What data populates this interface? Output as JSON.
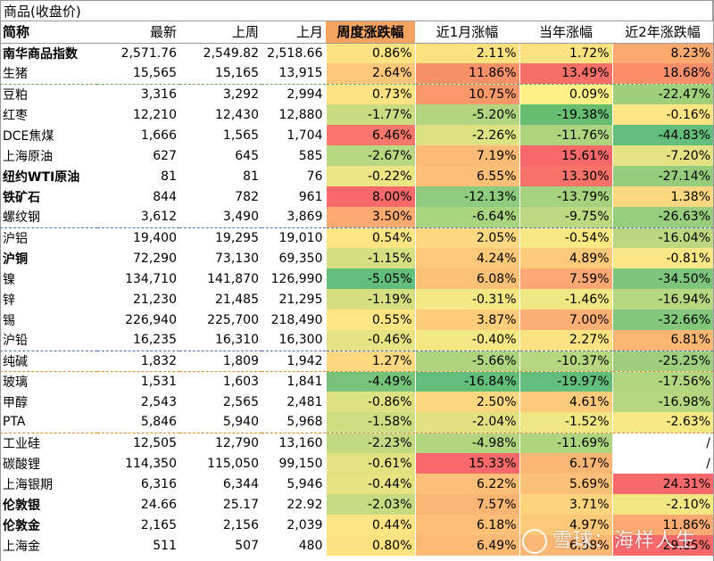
{
  "title": "商品(收盘价)",
  "headers": [
    "简称",
    "最新",
    "上周",
    "上月",
    "周度涨跌幅",
    "近1月涨幅",
    "当年涨幅",
    "近2年涨跌幅"
  ],
  "rows": [
    {
      "name": "南华商品指数",
      "bold": true,
      "sep": "",
      "latest": "2,571.76",
      "last_week": "2,549.82",
      "last_month": "2,518.66",
      "weekly": "0.86%",
      "m1": "2.11%",
      "ytd": "1.72%",
      "y2": "8.23%",
      "c": [
        "#fde282",
        "#fde282",
        "#fde282",
        "#fba96e"
      ]
    },
    {
      "name": "生猪",
      "bold": false,
      "sep": "",
      "latest": "15,565",
      "last_week": "15,165",
      "last_month": "13,915",
      "weekly": "2.64%",
      "m1": "11.86%",
      "ytd": "13.49%",
      "y2": "18.68%",
      "c": [
        "#fcc77a",
        "#f8906a",
        "#f86e68",
        "#fb8f6c"
      ]
    },
    {
      "name": "豆粕",
      "bold": false,
      "sep": "green",
      "latest": "3,316",
      "last_week": "3,292",
      "last_month": "2,994",
      "weekly": "0.73%",
      "m1": "10.75%",
      "ytd": "0.09%",
      "y2": "-22.47%",
      "c": [
        "#fee383",
        "#f9996b",
        "#fef084",
        "#9fd07c"
      ]
    },
    {
      "name": "红枣",
      "bold": false,
      "sep": "",
      "latest": "12,210",
      "last_week": "12,430",
      "last_month": "12,880",
      "weekly": "-1.77%",
      "m1": "-5.20%",
      "ytd": "-19.38%",
      "y2": "-0.16%",
      "c": [
        "#c9dc82",
        "#b1d580",
        "#66bd6f",
        "#fde583"
      ]
    },
    {
      "name": "DCE焦煤",
      "bold": false,
      "sep": "",
      "latest": "1,666",
      "last_week": "1,565",
      "last_month": "1,704",
      "weekly": "6.46%",
      "m1": "-2.26%",
      "ytd": "-11.76%",
      "y2": "-44.83%",
      "c": [
        "#f8776c",
        "#dce182",
        "#aed480",
        "#63be7b"
      ]
    },
    {
      "name": "上海原油",
      "bold": false,
      "sep": "",
      "latest": "627",
      "last_week": "645",
      "last_month": "585",
      "weekly": "-2.67%",
      "m1": "7.19%",
      "ytd": "15.61%",
      "y2": "-7.20%",
      "c": [
        "#b7d780",
        "#fbba76",
        "#f8696b",
        "#e5e283"
      ]
    },
    {
      "name": "纽约WTI原油",
      "bold": true,
      "sep": "",
      "latest": "81",
      "last_week": "81",
      "last_month": "76",
      "weekly": "-0.22%",
      "m1": "6.55%",
      "ytd": "13.30%",
      "y2": "-27.14%",
      "c": [
        "#ebe583",
        "#fbbf77",
        "#f9736b",
        "#95cd7d"
      ]
    },
    {
      "name": "铁矿石",
      "bold": true,
      "sep": "",
      "latest": "844",
      "last_week": "782",
      "last_month": "961",
      "weekly": "8.00%",
      "m1": "-12.13%",
      "ytd": "-13.79%",
      "y2": "1.38%",
      "c": [
        "#f8696b",
        "#8fcb7e",
        "#a6d27f",
        "#fdd880"
      ]
    },
    {
      "name": "螺纹钢",
      "bold": false,
      "sep": "",
      "latest": "3,612",
      "last_week": "3,490",
      "last_month": "3,869",
      "weekly": "3.50%",
      "m1": "-6.64%",
      "ytd": "-9.75%",
      "y2": "-26.63%",
      "c": [
        "#fbaa72",
        "#a8d37f",
        "#bcd881",
        "#97ce7d"
      ]
    },
    {
      "name": "沪铝",
      "bold": false,
      "sep": "blue",
      "latest": "19,400",
      "last_week": "19,295",
      "last_month": "19,010",
      "weekly": "0.54%",
      "m1": "2.05%",
      "ytd": "-0.54%",
      "y2": "-16.04%",
      "c": [
        "#fde583",
        "#fdd880",
        "#f7e884",
        "#bbd880"
      ]
    },
    {
      "name": "沪铜",
      "bold": true,
      "sep": "",
      "latest": "72,290",
      "last_week": "73,130",
      "last_month": "69,350",
      "weekly": "-1.15%",
      "m1": "4.24%",
      "ytd": "4.89%",
      "y2": "-0.81%",
      "c": [
        "#d6e083",
        "#fcc97a",
        "#fcc87a",
        "#fbe784"
      ]
    },
    {
      "name": "镍",
      "bold": false,
      "sep": "",
      "latest": "134,710",
      "last_week": "141,870",
      "last_month": "126,990",
      "weekly": "-5.05%",
      "m1": "6.08%",
      "ytd": "7.59%",
      "y2": "-34.50%",
      "c": [
        "#63be7b",
        "#fbc277",
        "#fba874",
        "#7dc57c"
      ]
    },
    {
      "name": "锌",
      "bold": false,
      "sep": "",
      "latest": "21,230",
      "last_week": "21,485",
      "last_month": "21,295",
      "weekly": "-1.19%",
      "m1": "-0.31%",
      "ytd": "-1.46%",
      "y2": "-16.94%",
      "c": [
        "#d5df82",
        "#f4e884",
        "#f0e784",
        "#b6d67f"
      ]
    },
    {
      "name": "锡",
      "bold": false,
      "sep": "",
      "latest": "226,940",
      "last_week": "225,700",
      "last_month": "218,490",
      "weekly": "0.55%",
      "m1": "3.87%",
      "ytd": "7.00%",
      "y2": "-32.66%",
      "c": [
        "#fde583",
        "#fdcd7b",
        "#fbaf75",
        "#83c77c"
      ]
    },
    {
      "name": "沪铅",
      "bold": false,
      "sep": "",
      "latest": "16,235",
      "last_week": "16,310",
      "last_month": "16,300",
      "weekly": "-0.46%",
      "m1": "-0.40%",
      "ytd": "2.27%",
      "y2": "6.81%",
      "c": [
        "#e5e383",
        "#f4e884",
        "#fde282",
        "#fcb674"
      ]
    },
    {
      "name": "纯碱",
      "bold": false,
      "sep": "blue",
      "latest": "1,832",
      "last_week": "1,809",
      "last_month": "1,942",
      "weekly": "1.27%",
      "m1": "-5.66%",
      "ytd": "-10.37%",
      "y2": "-25.25%",
      "c": [
        "#fed981",
        "#aed480",
        "#b7d680",
        "#9dcf7e"
      ]
    },
    {
      "name": "玻璃",
      "bold": false,
      "sep": "orange",
      "latest": "1,531",
      "last_week": "1,603",
      "last_month": "1,841",
      "weekly": "-4.49%",
      "m1": "-16.84%",
      "ytd": "-19.97%",
      "y2": "-17.56%",
      "c": [
        "#78c37c",
        "#63be7b",
        "#63be7b",
        "#b2d57f"
      ]
    },
    {
      "name": "甲醇",
      "bold": false,
      "sep": "",
      "latest": "2,543",
      "last_week": "2,565",
      "last_month": "2,481",
      "weekly": "-0.86%",
      "m1": "2.50%",
      "ytd": "4.61%",
      "y2": "-16.98%",
      "c": [
        "#dde182",
        "#fdd680",
        "#fcca7b",
        "#b6d67f"
      ]
    },
    {
      "name": "PTA",
      "bold": false,
      "sep": "",
      "latest": "5,846",
      "last_week": "5,940",
      "last_month": "5,968",
      "weekly": "-1.58%",
      "m1": "-2.04%",
      "ytd": "-1.52%",
      "y2": "-2.63%",
      "c": [
        "#cfdd82",
        "#e1e182",
        "#f0e784",
        "#f6e883"
      ]
    },
    {
      "name": "工业硅",
      "bold": false,
      "sep": "orange",
      "latest": "12,505",
      "last_week": "12,790",
      "last_month": "13,160",
      "weekly": "-2.23%",
      "m1": "-4.98%",
      "ytd": "-11.69%",
      "y2": "/",
      "c": [
        "#c1d981",
        "#b3d580",
        "#aed480",
        "#ffffff"
      ]
    },
    {
      "name": "碳酸锂",
      "bold": false,
      "sep": "",
      "latest": "114,350",
      "last_week": "115,050",
      "last_month": "99,150",
      "weekly": "-0.61%",
      "m1": "15.33%",
      "ytd": "6.17%",
      "y2": "/",
      "c": [
        "#e3e283",
        "#f8696b",
        "#fbb575",
        "#ffffff"
      ]
    },
    {
      "name": "上海银期",
      "bold": false,
      "sep": "",
      "latest": "6,316",
      "last_week": "6,344",
      "last_month": "5,946",
      "weekly": "-0.44%",
      "m1": "6.22%",
      "ytd": "5.69%",
      "y2": "24.31%",
      "c": [
        "#e6e383",
        "#fbbf77",
        "#fbc077",
        "#f8696b"
      ]
    },
    {
      "name": "伦敦银",
      "bold": true,
      "sep": "",
      "latest": "24.66",
      "last_week": "25.17",
      "last_month": "22.92",
      "weekly": "-2.03%",
      "m1": "7.57%",
      "ytd": "3.71%",
      "y2": "-2.10%",
      "c": [
        "#c5db81",
        "#fab474",
        "#fdd37e",
        "#f3e783"
      ]
    },
    {
      "name": "伦敦金",
      "bold": true,
      "sep": "",
      "latest": "2,165",
      "last_week": "2,156",
      "last_month": "2,039",
      "weekly": "0.44%",
      "m1": "6.18%",
      "ytd": "4.97%",
      "y2": "11.86%",
      "c": [
        "#fde583",
        "#fbbf77",
        "#fcc87a",
        "#fbaa72"
      ]
    },
    {
      "name": "上海金",
      "bold": false,
      "sep": "",
      "latest": "511",
      "last_week": "507",
      "last_month": "480",
      "weekly": "0.80%",
      "m1": "6.49%",
      "ytd": "6.58%",
      "y2": "29.85%",
      "c": [
        "#fde282",
        "#fbbb76",
        "#fbb775",
        "#f8696b"
      ]
    }
  ],
  "watermark": "雪球：海样人生"
}
